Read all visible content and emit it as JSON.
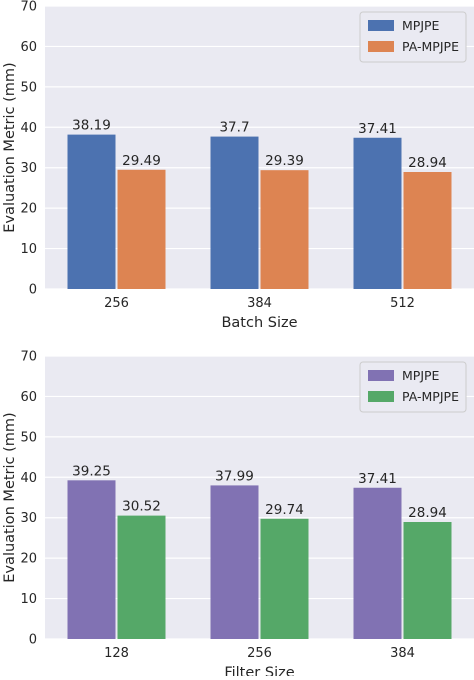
{
  "chart_data": [
    {
      "type": "bar",
      "title": "",
      "xlabel": "Batch Size",
      "ylabel": "Evaluation Metric (mm)",
      "categories": [
        "256",
        "384",
        "512"
      ],
      "ylim": [
        0,
        70
      ],
      "yticks": [
        0,
        10,
        20,
        30,
        40,
        50,
        60,
        70
      ],
      "grid": true,
      "legend_position": "top-right",
      "series": [
        {
          "name": "MPJPE",
          "color": "#4c72b0",
          "values": [
            38.19,
            37.7,
            37.41
          ],
          "labels": [
            "38.19",
            "37.7",
            "37.41"
          ]
        },
        {
          "name": "PA-MPJPE",
          "color": "#dd8452",
          "values": [
            29.49,
            29.39,
            28.94
          ],
          "labels": [
            "29.49",
            "29.39",
            "28.94"
          ]
        }
      ]
    },
    {
      "type": "bar",
      "title": "",
      "xlabel": "Filter Size",
      "ylabel": "Evaluation Metric (mm)",
      "categories": [
        "128",
        "256",
        "384"
      ],
      "ylim": [
        0,
        70
      ],
      "yticks": [
        0,
        10,
        20,
        30,
        40,
        50,
        60,
        70
      ],
      "grid": true,
      "legend_position": "top-right",
      "series": [
        {
          "name": "MPJPE",
          "color": "#8172b3",
          "values": [
            39.25,
            37.99,
            37.41
          ],
          "labels": [
            "39.25",
            "37.99",
            "37.41"
          ]
        },
        {
          "name": "PA-MPJPE",
          "color": "#55a868",
          "values": [
            30.52,
            29.74,
            28.94
          ],
          "labels": [
            "30.52",
            "29.74",
            "28.94"
          ]
        }
      ]
    }
  ]
}
